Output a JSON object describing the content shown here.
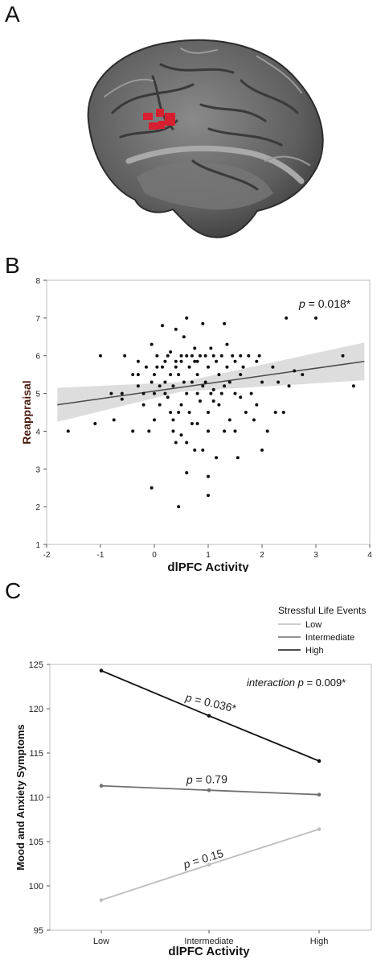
{
  "panels": {
    "a": {
      "letter": "A"
    },
    "b": {
      "letter": "B"
    },
    "c": {
      "letter": "C"
    }
  },
  "colors": {
    "brain": "#6e6e6e",
    "activation": "#d6202f",
    "fit_line": "#4a4a4a",
    "ci_band": "#d9d9d9",
    "high": "#111111",
    "intermediate": "#707070",
    "low": "#bdbdbd"
  },
  "chart_data": [
    {
      "type": "scatter",
      "xlabel": "dlPFC Activity",
      "ylabel": "Reappraisal",
      "annotation_p": "p",
      "annotation_value": " = 0.018*",
      "xlim": [
        -2,
        4
      ],
      "ylim": [
        1,
        8
      ],
      "xticks": [
        "-2",
        "-1",
        "0",
        "1",
        "2",
        "3",
        "4"
      ],
      "yticks": [
        "1",
        "2",
        "3",
        "4",
        "5",
        "6",
        "7",
        "8"
      ],
      "fit": {
        "x": [
          -1.8,
          3.9
        ],
        "y": [
          4.7,
          5.85
        ]
      },
      "ci": {
        "x": [
          -1.8,
          0.5,
          3.9
        ],
        "upper": [
          5.15,
          5.3,
          6.35
        ],
        "lower": [
          4.25,
          5.05,
          5.35
        ]
      },
      "points": [
        [
          -1.6,
          4.0
        ],
        [
          -1.1,
          4.2
        ],
        [
          -1.0,
          6.0
        ],
        [
          -0.8,
          5.0
        ],
        [
          -0.75,
          4.3
        ],
        [
          -0.6,
          5.0
        ],
        [
          -0.6,
          4.85
        ],
        [
          -0.55,
          6.0
        ],
        [
          -0.4,
          5.5
        ],
        [
          -0.4,
          4.0
        ],
        [
          -0.3,
          5.5
        ],
        [
          -0.3,
          5.85
        ],
        [
          -0.2,
          4.7
        ],
        [
          -0.2,
          5.0
        ],
        [
          -0.15,
          5.7
        ],
        [
          -0.1,
          4.0
        ],
        [
          -0.05,
          6.3
        ],
        [
          -0.05,
          5.3
        ],
        [
          0.0,
          4.3
        ],
        [
          0.0,
          5.0
        ],
        [
          0.0,
          5.5
        ],
        [
          -0.05,
          2.5
        ],
        [
          0.05,
          5.7
        ],
        [
          0.05,
          6.0
        ],
        [
          0.1,
          5.2
        ],
        [
          0.15,
          5.7
        ],
        [
          0.15,
          6.8
        ],
        [
          0.2,
          5.0
        ],
        [
          0.2,
          5.85
        ],
        [
          0.25,
          6.0
        ],
        [
          0.25,
          4.9
        ],
        [
          0.3,
          4.5
        ],
        [
          0.3,
          5.5
        ],
        [
          0.3,
          6.1
        ],
        [
          0.35,
          4.0
        ],
        [
          0.35,
          5.2
        ],
        [
          0.35,
          4.3
        ],
        [
          0.4,
          3.7
        ],
        [
          0.4,
          5.85
        ],
        [
          0.4,
          6.7
        ],
        [
          0.45,
          4.5
        ],
        [
          0.45,
          5.5
        ],
        [
          0.45,
          2.0
        ],
        [
          0.5,
          6.0
        ],
        [
          0.5,
          4.7
        ],
        [
          0.5,
          5.85
        ],
        [
          0.5,
          3.9
        ],
        [
          0.55,
          5.3
        ],
        [
          0.55,
          6.5
        ],
        [
          0.6,
          7.0
        ],
        [
          0.6,
          5.0
        ],
        [
          0.6,
          3.7
        ],
        [
          0.6,
          2.9
        ],
        [
          0.65,
          5.7
        ],
        [
          0.65,
          4.5
        ],
        [
          0.7,
          6.0
        ],
        [
          0.7,
          4.2
        ],
        [
          0.7,
          5.3
        ],
        [
          0.75,
          3.5
        ],
        [
          0.75,
          6.2
        ],
        [
          0.75,
          5.85
        ],
        [
          0.8,
          4.2
        ],
        [
          0.8,
          5.0
        ],
        [
          0.8,
          5.5
        ],
        [
          0.85,
          6.0
        ],
        [
          0.85,
          4.8
        ],
        [
          0.9,
          6.85
        ],
        [
          0.9,
          3.5
        ],
        [
          0.95,
          5.3
        ],
        [
          0.95,
          6.0
        ],
        [
          1.0,
          4.0
        ],
        [
          1.0,
          5.7
        ],
        [
          1.0,
          4.5
        ],
        [
          1.0,
          2.8
        ],
        [
          1.0,
          2.3
        ],
        [
          1.05,
          6.2
        ],
        [
          1.05,
          5.0
        ],
        [
          1.1,
          6.0
        ],
        [
          1.1,
          4.8
        ],
        [
          1.15,
          3.3
        ],
        [
          1.15,
          5.85
        ],
        [
          1.2,
          4.7
        ],
        [
          1.2,
          5.5
        ],
        [
          1.25,
          6.0
        ],
        [
          1.25,
          5.0
        ],
        [
          1.3,
          6.85
        ],
        [
          1.3,
          4.0
        ],
        [
          1.35,
          5.7
        ],
        [
          1.35,
          6.3
        ],
        [
          1.4,
          4.3
        ],
        [
          1.4,
          5.3
        ],
        [
          1.45,
          6.0
        ],
        [
          1.5,
          4.0
        ],
        [
          1.5,
          5.0
        ],
        [
          1.5,
          5.85
        ],
        [
          1.55,
          3.3
        ],
        [
          1.6,
          6.0
        ],
        [
          1.6,
          5.5
        ],
        [
          1.65,
          5.7
        ],
        [
          1.7,
          4.5
        ],
        [
          1.75,
          6.0
        ],
        [
          1.8,
          5.0
        ],
        [
          1.85,
          4.3
        ],
        [
          1.9,
          5.85
        ],
        [
          1.95,
          6.0
        ],
        [
          2.0,
          5.3
        ],
        [
          2.0,
          3.5
        ],
        [
          2.1,
          4.0
        ],
        [
          2.2,
          5.7
        ],
        [
          2.25,
          4.5
        ],
        [
          2.3,
          5.3
        ],
        [
          2.4,
          4.5
        ],
        [
          2.45,
          7.0
        ],
        [
          2.6,
          5.6
        ],
        [
          2.75,
          5.5
        ],
        [
          3.0,
          7.0
        ],
        [
          3.5,
          6.0
        ],
        [
          3.7,
          5.2
        ],
        [
          0.6,
          6.0
        ],
        [
          0.9,
          5.2
        ],
        [
          1.1,
          5.1
        ],
        [
          0.2,
          5.3
        ],
        [
          0.4,
          5.7
        ],
        [
          1.3,
          5.2
        ],
        [
          1.6,
          4.9
        ],
        [
          0.8,
          5.85
        ],
        [
          -0.3,
          5.2
        ],
        [
          0.1,
          4.7
        ],
        [
          1.9,
          4.7
        ],
        [
          2.5,
          5.2
        ]
      ]
    },
    {
      "type": "line",
      "legend_title": "Stressful Life Events",
      "xlabel": "dlPFC Activity",
      "ylabel": "Mood and Anxiety Symptoms",
      "annotation_italic": "interaction p",
      "annotation_value": " = 0.009*",
      "categories": [
        "Low",
        "Intermediate",
        "High"
      ],
      "ylim": [
        95,
        125
      ],
      "yticks": [
        "95",
        "100",
        "105",
        "110",
        "115",
        "120",
        "125"
      ],
      "series": [
        {
          "name": "Low",
          "values": [
            98.4,
            102.4,
            106.4
          ],
          "label_p": "p",
          "label_value": " = 0.15",
          "colorKey": "low"
        },
        {
          "name": "Intermediate",
          "values": [
            111.3,
            110.8,
            110.3
          ],
          "label_p": "p",
          "label_value": " = 0.79",
          "colorKey": "intermediate"
        },
        {
          "name": "High",
          "values": [
            124.3,
            119.2,
            114.1
          ],
          "label_p": "p",
          "label_value": " = 0.036*",
          "colorKey": "high"
        }
      ]
    }
  ]
}
